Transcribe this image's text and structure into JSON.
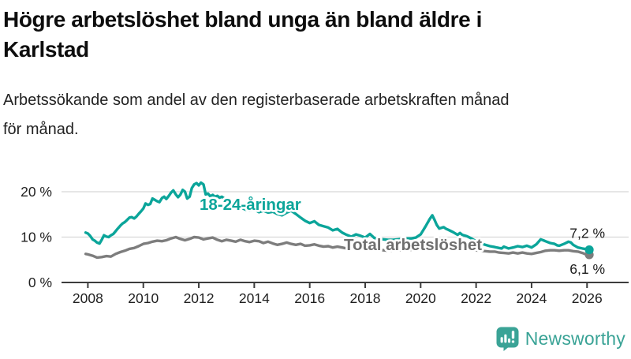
{
  "header": {
    "title_lines": [
      "Högre arbetslöshet bland unga än bland äldre i",
      "Karlstad"
    ],
    "subtitle_lines": [
      "Arbetssökande som andel av den registerbaserade arbetskraften månad",
      "för månad."
    ]
  },
  "chart_data": {
    "type": "line",
    "title": "Högre arbetslöshet bland unga än bland äldre i Karlstad",
    "subtitle": "Arbetssökande som andel av den registerbaserade arbetskraften månad för månad.",
    "xlabel": "",
    "ylabel": "",
    "unit": "%",
    "grid": "horizontal",
    "legend_position": "inline-labels",
    "x_axis": {
      "range": [
        2007.05,
        2027.5
      ],
      "ticks": [
        2008,
        2010,
        2012,
        2014,
        2016,
        2018,
        2020,
        2022,
        2024,
        2026
      ],
      "tick_labels": [
        "2008",
        "2010",
        "2012",
        "2014",
        "2016",
        "2018",
        "2020",
        "2022",
        "2024",
        "2026"
      ]
    },
    "y_axis": {
      "range": [
        0,
        24
      ],
      "ticks": [
        0,
        10,
        20
      ],
      "tick_labels": [
        "0 %",
        "10 %",
        "20 %"
      ]
    },
    "colors": {
      "youth_line": "#0ba59a",
      "total_line": "#7d7d7d",
      "total_label_text": "#6f6f6f",
      "grid": "#d8d8d8",
      "axis": "#3d3d3d",
      "tick_text": "#1f1f1f",
      "end_label_text": "#1a1a1a"
    },
    "series": [
      {
        "name": "Total arbetslöshet",
        "end_label": "6,1 %",
        "points": [
          [
            2007.92,
            6.3
          ],
          [
            2008.0,
            6.2
          ],
          [
            2008.17,
            5.9
          ],
          [
            2008.33,
            5.5
          ],
          [
            2008.5,
            5.6
          ],
          [
            2008.67,
            5.8
          ],
          [
            2008.83,
            5.7
          ],
          [
            2009.0,
            6.3
          ],
          [
            2009.17,
            6.7
          ],
          [
            2009.33,
            7.0
          ],
          [
            2009.5,
            7.4
          ],
          [
            2009.67,
            7.6
          ],
          [
            2009.83,
            8.0
          ],
          [
            2010.0,
            8.5
          ],
          [
            2010.17,
            8.7
          ],
          [
            2010.33,
            9.0
          ],
          [
            2010.5,
            9.2
          ],
          [
            2010.67,
            9.1
          ],
          [
            2010.83,
            9.3
          ],
          [
            2011.0,
            9.7
          ],
          [
            2011.17,
            10.0
          ],
          [
            2011.33,
            9.6
          ],
          [
            2011.5,
            9.3
          ],
          [
            2011.67,
            9.6
          ],
          [
            2011.83,
            10.0
          ],
          [
            2012.0,
            9.9
          ],
          [
            2012.17,
            9.5
          ],
          [
            2012.33,
            9.7
          ],
          [
            2012.5,
            9.9
          ],
          [
            2012.67,
            9.4
          ],
          [
            2012.83,
            9.1
          ],
          [
            2013.0,
            9.4
          ],
          [
            2013.17,
            9.2
          ],
          [
            2013.33,
            9.0
          ],
          [
            2013.5,
            9.4
          ],
          [
            2013.67,
            9.1
          ],
          [
            2013.83,
            8.9
          ],
          [
            2014.0,
            9.2
          ],
          [
            2014.17,
            9.1
          ],
          [
            2014.33,
            8.7
          ],
          [
            2014.5,
            9.0
          ],
          [
            2014.67,
            8.6
          ],
          [
            2014.83,
            8.3
          ],
          [
            2015.0,
            8.5
          ],
          [
            2015.17,
            8.8
          ],
          [
            2015.33,
            8.5
          ],
          [
            2015.5,
            8.3
          ],
          [
            2015.67,
            8.5
          ],
          [
            2015.83,
            8.1
          ],
          [
            2016.0,
            8.2
          ],
          [
            2016.17,
            8.4
          ],
          [
            2016.33,
            8.1
          ],
          [
            2016.5,
            7.9
          ],
          [
            2016.67,
            8.0
          ],
          [
            2016.83,
            7.7
          ],
          [
            2017.0,
            7.9
          ],
          [
            2017.17,
            7.7
          ],
          [
            2017.33,
            7.5
          ],
          [
            2017.5,
            7.7
          ],
          [
            2017.67,
            7.5
          ],
          [
            2017.83,
            7.4
          ],
          [
            2018.0,
            7.6
          ],
          [
            2018.17,
            7.4
          ],
          [
            2018.33,
            7.2
          ],
          [
            2018.5,
            7.2
          ],
          [
            2018.67,
            7.1
          ],
          [
            2018.83,
            7.0
          ],
          [
            2019.0,
            7.0
          ],
          [
            2019.17,
            7.1
          ],
          [
            2019.33,
            7.1
          ],
          [
            2019.5,
            7.2
          ],
          [
            2019.67,
            7.2
          ],
          [
            2019.83,
            7.3
          ],
          [
            2020.0,
            7.6
          ],
          [
            2020.17,
            8.2
          ],
          [
            2020.33,
            8.7
          ],
          [
            2020.5,
            8.8
          ],
          [
            2020.67,
            8.6
          ],
          [
            2020.83,
            8.4
          ],
          [
            2021.0,
            8.2
          ],
          [
            2021.17,
            8.0
          ],
          [
            2021.33,
            7.8
          ],
          [
            2021.5,
            7.6
          ],
          [
            2021.67,
            7.4
          ],
          [
            2021.83,
            7.2
          ],
          [
            2022.0,
            7.1
          ],
          [
            2022.17,
            7.0
          ],
          [
            2022.33,
            6.9
          ],
          [
            2022.5,
            6.8
          ],
          [
            2022.67,
            6.8
          ],
          [
            2022.83,
            6.6
          ],
          [
            2023.0,
            6.5
          ],
          [
            2023.17,
            6.4
          ],
          [
            2023.33,
            6.6
          ],
          [
            2023.5,
            6.4
          ],
          [
            2023.67,
            6.6
          ],
          [
            2023.83,
            6.4
          ],
          [
            2024.0,
            6.3
          ],
          [
            2024.17,
            6.5
          ],
          [
            2024.33,
            6.7
          ],
          [
            2024.5,
            7.0
          ],
          [
            2024.67,
            7.1
          ],
          [
            2024.83,
            7.1
          ],
          [
            2025.0,
            7.0
          ],
          [
            2025.17,
            7.1
          ],
          [
            2025.33,
            7.1
          ],
          [
            2025.5,
            6.9
          ],
          [
            2025.67,
            6.8
          ],
          [
            2025.83,
            6.5
          ],
          [
            2025.92,
            6.3
          ],
          [
            2026.08,
            6.1
          ]
        ]
      },
      {
        "name": "18-24-åringar",
        "end_label": "7,2 %",
        "points": [
          [
            2007.92,
            11.0
          ],
          [
            2008.0,
            10.8
          ],
          [
            2008.08,
            10.3
          ],
          [
            2008.17,
            9.5
          ],
          [
            2008.25,
            9.2
          ],
          [
            2008.33,
            8.8
          ],
          [
            2008.42,
            8.6
          ],
          [
            2008.5,
            9.4
          ],
          [
            2008.58,
            10.4
          ],
          [
            2008.67,
            10.1
          ],
          [
            2008.75,
            10.0
          ],
          [
            2008.83,
            10.4
          ],
          [
            2008.92,
            10.7
          ],
          [
            2009.0,
            11.3
          ],
          [
            2009.08,
            11.9
          ],
          [
            2009.17,
            12.5
          ],
          [
            2009.25,
            13.0
          ],
          [
            2009.33,
            13.3
          ],
          [
            2009.42,
            13.8
          ],
          [
            2009.5,
            14.3
          ],
          [
            2009.58,
            14.4
          ],
          [
            2009.67,
            14.1
          ],
          [
            2009.75,
            14.5
          ],
          [
            2009.83,
            15.1
          ],
          [
            2009.92,
            15.7
          ],
          [
            2010.0,
            16.3
          ],
          [
            2010.08,
            17.4
          ],
          [
            2010.17,
            17.1
          ],
          [
            2010.25,
            17.3
          ],
          [
            2010.33,
            18.5
          ],
          [
            2010.42,
            18.2
          ],
          [
            2010.5,
            17.9
          ],
          [
            2010.58,
            17.7
          ],
          [
            2010.67,
            18.6
          ],
          [
            2010.75,
            18.9
          ],
          [
            2010.83,
            18.4
          ],
          [
            2010.92,
            19.1
          ],
          [
            2011.0,
            19.8
          ],
          [
            2011.08,
            20.3
          ],
          [
            2011.17,
            19.4
          ],
          [
            2011.25,
            18.8
          ],
          [
            2011.33,
            19.3
          ],
          [
            2011.42,
            20.4
          ],
          [
            2011.5,
            20.0
          ],
          [
            2011.58,
            18.5
          ],
          [
            2011.67,
            18.9
          ],
          [
            2011.75,
            20.8
          ],
          [
            2011.83,
            21.6
          ],
          [
            2011.92,
            21.9
          ],
          [
            2012.0,
            21.4
          ],
          [
            2012.08,
            22.0
          ],
          [
            2012.17,
            21.6
          ],
          [
            2012.25,
            19.4
          ],
          [
            2012.33,
            19.6
          ],
          [
            2012.42,
            19.0
          ],
          [
            2012.5,
            19.3
          ],
          [
            2012.58,
            18.9
          ],
          [
            2012.67,
            19.1
          ],
          [
            2012.75,
            18.7
          ],
          [
            2012.83,
            18.9
          ],
          [
            2012.92,
            18.5
          ],
          [
            2013.0,
            18.2
          ],
          [
            2013.17,
            17.7
          ],
          [
            2013.33,
            17.2
          ],
          [
            2013.5,
            16.6
          ],
          [
            2013.67,
            16.1
          ],
          [
            2013.83,
            15.8
          ],
          [
            2014.0,
            16.1
          ],
          [
            2014.17,
            15.5
          ],
          [
            2014.33,
            15.8
          ],
          [
            2014.5,
            15.4
          ],
          [
            2014.67,
            15.6
          ],
          [
            2014.83,
            15.1
          ],
          [
            2015.0,
            14.8
          ],
          [
            2015.17,
            15.4
          ],
          [
            2015.33,
            15.8
          ],
          [
            2015.5,
            15.1
          ],
          [
            2015.67,
            14.3
          ],
          [
            2015.83,
            13.6
          ],
          [
            2016.0,
            13.1
          ],
          [
            2016.17,
            13.5
          ],
          [
            2016.33,
            12.7
          ],
          [
            2016.5,
            12.4
          ],
          [
            2016.67,
            12.1
          ],
          [
            2016.83,
            11.5
          ],
          [
            2017.0,
            11.8
          ],
          [
            2017.17,
            11.0
          ],
          [
            2017.33,
            10.5
          ],
          [
            2017.5,
            10.1
          ],
          [
            2017.67,
            10.6
          ],
          [
            2017.83,
            10.3
          ],
          [
            2018.0,
            9.9
          ],
          [
            2018.17,
            10.7
          ],
          [
            2018.33,
            9.8
          ],
          [
            2018.5,
            9.6
          ],
          [
            2018.67,
            9.5
          ],
          [
            2018.83,
            9.4
          ],
          [
            2019.0,
            9.4
          ],
          [
            2019.17,
            9.5
          ],
          [
            2019.33,
            9.6
          ],
          [
            2019.5,
            9.7
          ],
          [
            2019.67,
            9.7
          ],
          [
            2019.83,
            9.9
          ],
          [
            2020.0,
            10.6
          ],
          [
            2020.17,
            12.3
          ],
          [
            2020.33,
            14.0
          ],
          [
            2020.42,
            14.8
          ],
          [
            2020.5,
            13.8
          ],
          [
            2020.58,
            12.7
          ],
          [
            2020.67,
            11.9
          ],
          [
            2020.83,
            12.2
          ],
          [
            2020.92,
            11.8
          ],
          [
            2021.0,
            11.6
          ],
          [
            2021.17,
            11.1
          ],
          [
            2021.33,
            10.5
          ],
          [
            2021.42,
            10.9
          ],
          [
            2021.5,
            10.5
          ],
          [
            2021.67,
            10.2
          ],
          [
            2021.83,
            9.7
          ],
          [
            2022.0,
            9.1
          ],
          [
            2022.17,
            8.7
          ],
          [
            2022.33,
            8.3
          ],
          [
            2022.5,
            8.0
          ],
          [
            2022.67,
            7.8
          ],
          [
            2022.83,
            7.6
          ],
          [
            2022.92,
            7.5
          ],
          [
            2023.0,
            7.9
          ],
          [
            2023.17,
            7.5
          ],
          [
            2023.33,
            7.7
          ],
          [
            2023.5,
            8.0
          ],
          [
            2023.67,
            7.8
          ],
          [
            2023.83,
            8.1
          ],
          [
            2023.92,
            7.9
          ],
          [
            2024.0,
            7.7
          ],
          [
            2024.17,
            8.4
          ],
          [
            2024.33,
            9.5
          ],
          [
            2024.42,
            9.3
          ],
          [
            2024.5,
            9.1
          ],
          [
            2024.67,
            8.7
          ],
          [
            2024.83,
            8.5
          ],
          [
            2024.92,
            8.2
          ],
          [
            2025.0,
            8.1
          ],
          [
            2025.17,
            8.5
          ],
          [
            2025.33,
            9.0
          ],
          [
            2025.42,
            8.8
          ],
          [
            2025.5,
            8.3
          ],
          [
            2025.67,
            7.7
          ],
          [
            2025.83,
            7.5
          ],
          [
            2025.92,
            7.4
          ],
          [
            2026.08,
            7.2
          ]
        ]
      }
    ]
  },
  "footer": {
    "brand": "Newsworthy",
    "brand_color": "#3aa396",
    "logo_icon": "bar-chart-speech-bubble-icon"
  }
}
